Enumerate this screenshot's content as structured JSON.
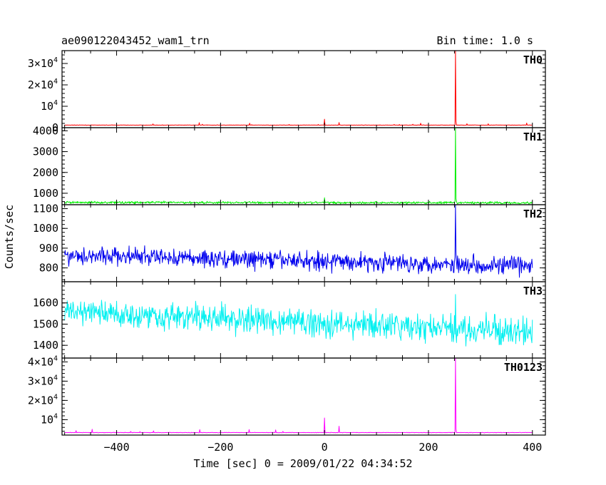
{
  "header": {
    "dataset_name": "ae090122043452_wam1_trn",
    "bin_time": "Bin time: 1.0 s"
  },
  "chart_data": {
    "type": "line",
    "xlabel": "Time [sec] 0 = 2009/01/22 04:34:52",
    "ylabel": "Counts/sec",
    "xlim": [
      -505,
      425
    ],
    "xticks": [
      {
        "value": -400,
        "label": "−400"
      },
      {
        "value": -200,
        "label": "−200"
      },
      {
        "value": 0,
        "label": "0"
      },
      {
        "value": 200,
        "label": "200"
      },
      {
        "value": 400,
        "label": "400"
      }
    ],
    "x_range": [
      -500,
      400
    ],
    "burst_time": 252,
    "panels": [
      {
        "name": "TH0",
        "color": "#ff0000",
        "ylim": [
          0,
          36000
        ],
        "yticks": [
          {
            "value": 0,
            "label": "0"
          },
          {
            "value": 10000,
            "base": "10",
            "exp": "4"
          },
          {
            "value": 20000,
            "base": "2×10",
            "exp": "4"
          },
          {
            "value": 30000,
            "base": "3×10",
            "exp": "4"
          }
        ],
        "baseline": 1200,
        "noise": 60,
        "peak": 36000,
        "trend": 0
      },
      {
        "name": "TH1",
        "color": "#00ee00",
        "ylim": [
          450,
          4150
        ],
        "yticks": [
          {
            "value": 1000,
            "label": "1000"
          },
          {
            "value": 2000,
            "label": "2000"
          },
          {
            "value": 3000,
            "label": "3000"
          },
          {
            "value": 4000,
            "label": "4000"
          }
        ],
        "baseline": 560,
        "noise": 40,
        "peak": 4150,
        "trend": -20
      },
      {
        "name": "TH2",
        "color": "#0000ee",
        "ylim": [
          730,
          1120
        ],
        "yticks": [
          {
            "value": 800,
            "label": "800"
          },
          {
            "value": 900,
            "label": "900"
          },
          {
            "value": 1000,
            "label": "1000"
          },
          {
            "value": 1100,
            "label": "1100"
          }
        ],
        "baseline": 865,
        "noise": 32,
        "peak": 1120,
        "trend": -55
      },
      {
        "name": "TH3",
        "color": "#00f0f0",
        "ylim": [
          1340,
          1700
        ],
        "yticks": [
          {
            "value": 1400,
            "label": "1400"
          },
          {
            "value": 1500,
            "label": "1500"
          },
          {
            "value": 1600,
            "label": "1600"
          }
        ],
        "baseline": 1560,
        "noise": 45,
        "peak": 1640,
        "trend": -100
      },
      {
        "name": "TH0123",
        "color": "#ff00ff",
        "ylim": [
          2000,
          42000
        ],
        "yticks": [
          {
            "value": 10000,
            "base": "10",
            "exp": "4"
          },
          {
            "value": 20000,
            "base": "2×10",
            "exp": "4"
          },
          {
            "value": 30000,
            "base": "3×10",
            "exp": "4"
          },
          {
            "value": 40000,
            "base": "4×10",
            "exp": "4"
          }
        ],
        "baseline": 3300,
        "noise": 90,
        "peak": 42000,
        "trend": 0
      }
    ]
  }
}
